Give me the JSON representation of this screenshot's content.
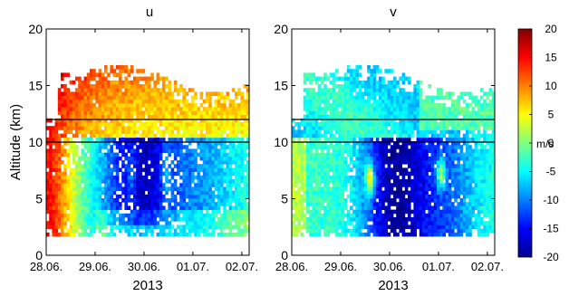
{
  "chart_data": {
    "type": "heatmap",
    "colorbar": {
      "ticks": [
        20,
        15,
        10,
        5,
        0,
        -5,
        -10,
        -15,
        -20
      ],
      "unit": "m/s",
      "range": [
        -20,
        20
      ],
      "colormap": "jet"
    },
    "shared": {
      "ylabel": "Altitude (km)",
      "xlabel": "2013",
      "xticks": [
        "28.06.",
        "29.06.",
        "30.06.",
        "01.07.",
        "02.07."
      ],
      "yticks": [
        "0",
        "5",
        "10",
        "15",
        "20"
      ],
      "xlim_days": [
        28.0,
        32.15
      ],
      "ylim_km": [
        0,
        20
      ],
      "horizontal_lines_km": [
        10,
        12
      ]
    },
    "panels": [
      {
        "title": "u",
        "approx_fields": [
          {
            "region": "upper troposphere/lower stratosphere 10-16 km, 28.06.",
            "value_ms": 17
          },
          {
            "region": "10-16 km, 29.06.-02.07.",
            "value_ms": 5
          },
          {
            "region": "low levels 2-9 km, 28.06.",
            "value_ms": 18
          },
          {
            "region": "2-10 km, 29.06.-01.07.",
            "value_ms": -12
          },
          {
            "region": "2-10 km, after 01.07.",
            "value_ms": -5
          }
        ]
      },
      {
        "title": "v",
        "approx_fields": [
          {
            "region": "10-16 km, 28.06.-02.07.",
            "value_ms": -5
          },
          {
            "region": "2-10 km, 28.06.-29.06.",
            "value_ms": -3
          },
          {
            "region": "2-11 km, 29.06.-01.07.",
            "value_ms": -18
          },
          {
            "region": "~7 km, late 29.06.",
            "value_ms": 12
          },
          {
            "region": "~7 km, 01.07.",
            "value_ms": 10
          }
        ]
      }
    ]
  }
}
